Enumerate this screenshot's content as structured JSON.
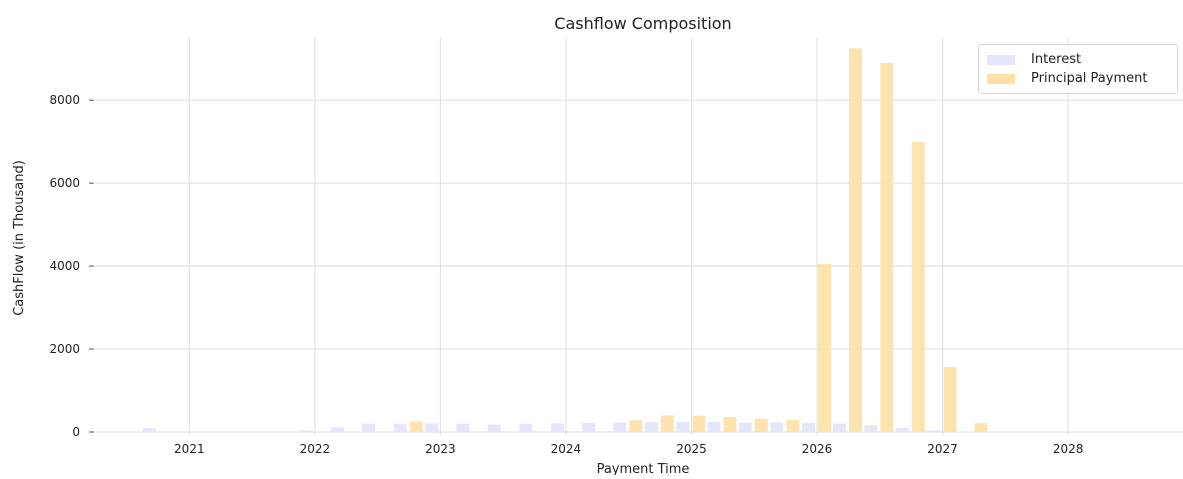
{
  "chart_data": {
    "type": "bar",
    "title": "Cashflow Composition",
    "xlabel": "Payment Time",
    "ylabel": "CashFlow (in Thousand)",
    "x_ticks": [
      "2021",
      "2022",
      "2023",
      "2024",
      "2025",
      "2026",
      "2027",
      "2028"
    ],
    "y_ticks": [
      "0",
      "2000",
      "4000",
      "6000",
      "8000"
    ],
    "ylim": [
      0,
      9500
    ],
    "xlim": [
      "2020-04-01",
      "2028-12-01"
    ],
    "grid": true,
    "legend_position": "top-right",
    "x": [
      "2020-10-01",
      "2021-01-01",
      "2021-04-01",
      "2021-07-01",
      "2021-10-01",
      "2022-01-01",
      "2022-04-01",
      "2022-07-01",
      "2022-10-01",
      "2023-01-01",
      "2023-04-01",
      "2023-07-01",
      "2023-10-01",
      "2024-01-01",
      "2024-04-01",
      "2024-07-01",
      "2024-10-01",
      "2025-01-01",
      "2025-04-01",
      "2025-07-01",
      "2025-10-01",
      "2026-01-01",
      "2026-04-01",
      "2026-07-01",
      "2026-10-01",
      "2027-01-01",
      "2027-04-01"
    ],
    "series": [
      {
        "name": "Interest",
        "color": "#e6e6fa",
        "values": [
          90,
          0,
          0,
          0,
          0,
          40,
          110,
          200,
          200,
          210,
          200,
          180,
          200,
          210,
          220,
          230,
          240,
          240,
          240,
          230,
          230,
          220,
          200,
          160,
          100,
          40,
          10
        ]
      },
      {
        "name": "Principal Payment",
        "color": "#ffe0a6",
        "values": [
          0,
          0,
          0,
          0,
          0,
          0,
          0,
          0,
          250,
          0,
          0,
          0,
          0,
          0,
          0,
          280,
          400,
          390,
          360,
          320,
          290,
          4050,
          9250,
          8900,
          7000,
          1570,
          210
        ]
      }
    ]
  }
}
